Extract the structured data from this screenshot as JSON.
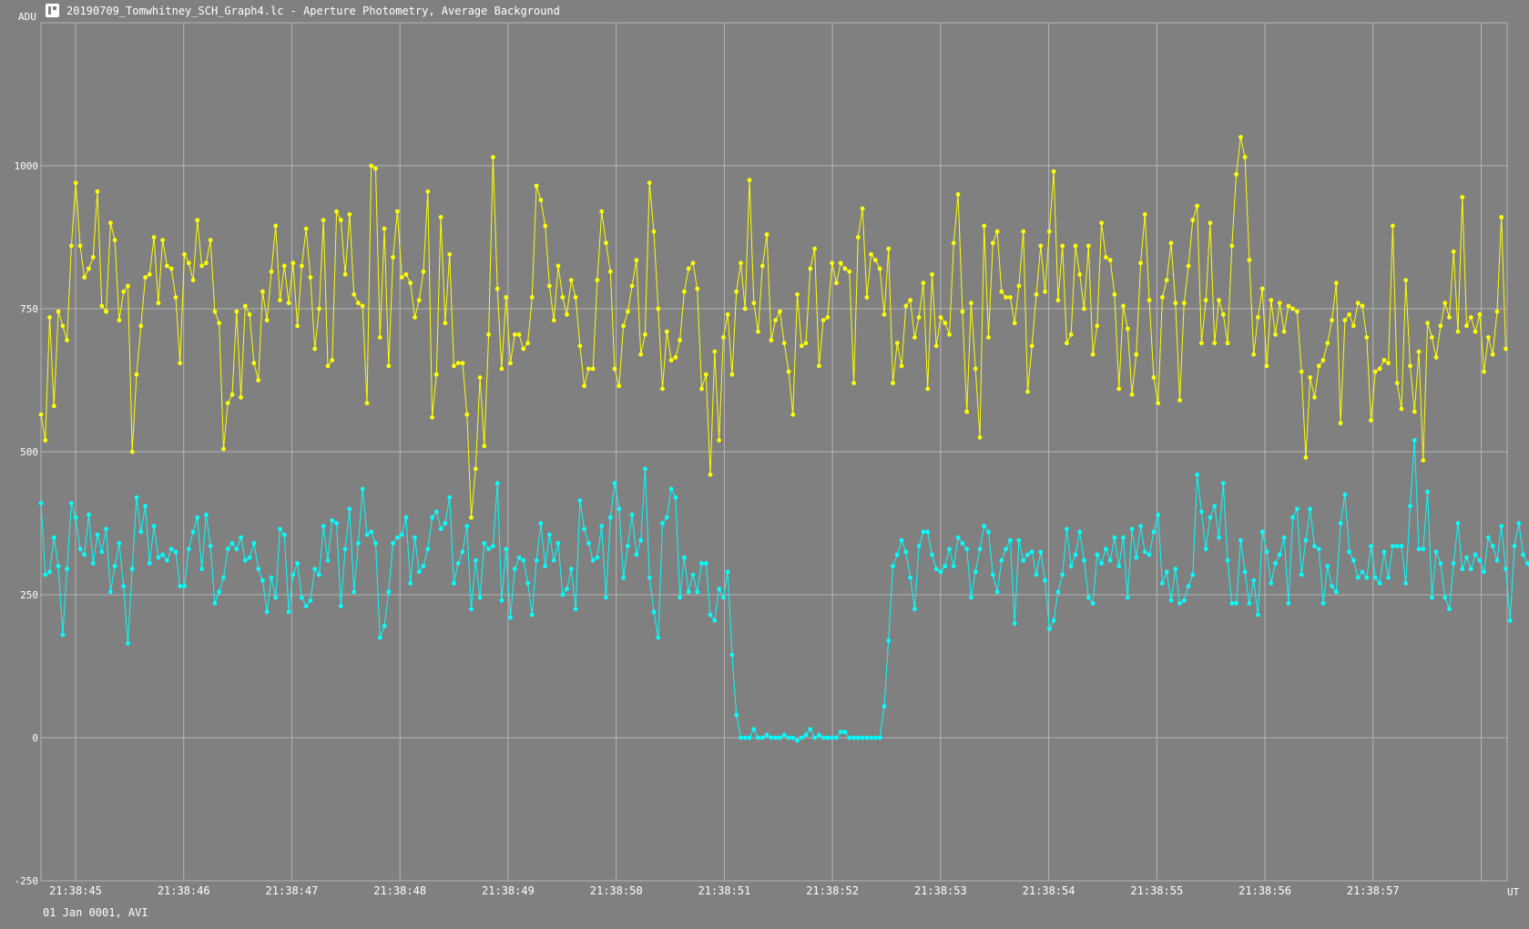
{
  "window": {
    "title": "20190709_Tomwhitney_SCH_Graph4.lc - Aperture Photometry, Average Background",
    "icon": "lightcurve-app-icon"
  },
  "footer": {
    "date_label": "01 Jan 0001, AVI"
  },
  "colors": {
    "background": "#808080",
    "grid": "#b4b4b4",
    "series_yellow": "#ffff00",
    "series_cyan": "#00ffff"
  },
  "chart_data": {
    "type": "line",
    "title": "",
    "ylabel": "ADU",
    "xlabel": "UT",
    "ylim": [
      -250,
      1250
    ],
    "yticks": [
      -250,
      0,
      250,
      500,
      750,
      1000
    ],
    "xlim": [
      44.68,
      58.24
    ],
    "xticks": [
      45,
      46,
      47,
      48,
      49,
      50,
      51,
      52,
      53,
      54,
      55,
      56,
      57,
      58
    ],
    "xtick_labels": [
      "21:38:45",
      "21:38:46",
      "21:38:47",
      "21:38:48",
      "21:38:49",
      "21:38:50",
      "21:38:51",
      "21:38:52",
      "21:38:53",
      "21:38:54",
      "21:38:55",
      "21:38:56",
      "21:38:57",
      ""
    ],
    "grid": true,
    "legend": "none",
    "x_start": 44.68,
    "x_step": 0.0402,
    "series": [
      {
        "color": "#ffff00",
        "values": [
          565,
          520,
          735,
          580,
          745,
          720,
          695,
          860,
          970,
          860,
          805,
          820,
          840,
          955,
          755,
          745,
          900,
          870,
          730,
          780,
          790,
          500,
          635,
          720,
          805,
          810,
          875,
          760,
          870,
          825,
          820,
          770,
          655,
          845,
          830,
          800,
          905,
          825,
          830,
          870,
          745,
          725,
          505,
          585,
          600,
          745,
          595,
          755,
          740,
          655,
          625,
          780,
          730,
          815,
          895,
          765,
          825,
          760,
          830,
          720,
          825,
          890,
          805,
          680,
          750,
          905,
          650,
          660,
          920,
          905,
          810,
          915,
          775,
          760,
          755,
          585,
          1000,
          995,
          700,
          890,
          650,
          840,
          920,
          805,
          810,
          795,
          735,
          765,
          815,
          955,
          560,
          635,
          910,
          725,
          845,
          650,
          655,
          655,
          565,
          385,
          470,
          630,
          510,
          705,
          1015,
          785,
          645,
          770,
          655,
          705,
          705,
          680,
          690,
          770,
          965,
          940,
          895,
          790,
          730,
          825,
          770,
          740,
          800,
          770,
          685,
          615,
          645,
          645,
          800,
          920,
          865,
          815,
          645,
          615,
          720,
          745,
          790,
          835,
          670,
          705,
          970,
          885,
          750,
          610,
          710,
          660,
          665,
          695,
          780,
          820,
          830,
          785,
          610,
          635,
          460,
          675,
          520,
          700,
          740,
          635,
          780,
          830,
          750,
          975,
          760,
          710,
          825,
          880,
          695,
          730,
          745,
          690,
          640,
          565,
          775,
          685,
          690,
          820,
          855,
          650,
          730,
          735,
          830,
          795,
          830,
          820,
          815,
          620,
          875,
          925,
          770,
          845,
          835,
          820,
          740,
          855,
          620,
          690,
          650,
          755,
          765,
          700,
          735,
          795,
          610,
          810,
          685,
          735,
          725,
          705,
          865,
          950,
          745,
          570,
          760,
          645,
          525,
          895,
          700,
          865,
          885,
          780,
          770,
          770,
          725,
          790,
          885,
          605,
          685,
          775,
          860,
          780,
          885,
          990,
          765,
          860,
          690,
          705,
          860,
          810,
          750,
          860,
          670,
          720,
          900,
          840,
          835,
          775,
          610,
          755,
          715,
          600,
          670,
          830,
          915,
          765,
          630,
          585,
          770,
          800,
          865,
          760,
          590,
          760,
          825,
          905,
          930,
          690,
          765,
          900,
          690,
          765,
          740,
          690,
          860,
          985,
          1050,
          1015,
          835,
          670,
          735,
          785,
          650,
          765,
          705,
          760,
          710,
          755,
          750,
          745,
          640,
          490,
          630,
          595,
          650,
          660,
          690,
          730,
          795,
          550,
          730,
          740,
          720,
          760,
          755,
          700,
          555,
          640,
          645,
          660,
          655,
          895,
          620,
          575,
          800,
          650,
          570,
          675,
          485,
          725,
          700,
          665,
          720,
          760,
          735,
          850,
          710,
          945,
          720,
          735,
          710,
          740,
          640,
          700,
          670,
          745,
          910,
          680
        ]
      },
      {
        "color": "#00ffff",
        "values": [
          410,
          285,
          290,
          350,
          300,
          180,
          295,
          410,
          385,
          330,
          320,
          390,
          305,
          355,
          325,
          365,
          255,
          300,
          340,
          265,
          165,
          295,
          420,
          360,
          405,
          305,
          370,
          315,
          320,
          310,
          330,
          325,
          265,
          265,
          330,
          360,
          385,
          295,
          390,
          335,
          235,
          255,
          280,
          330,
          340,
          330,
          350,
          310,
          315,
          340,
          295,
          275,
          220,
          280,
          245,
          365,
          355,
          220,
          285,
          305,
          245,
          230,
          240,
          295,
          285,
          370,
          310,
          380,
          375,
          230,
          330,
          400,
          255,
          340,
          435,
          355,
          360,
          340,
          175,
          195,
          255,
          340,
          350,
          355,
          385,
          270,
          350,
          290,
          300,
          330,
          385,
          395,
          365,
          375,
          420,
          270,
          305,
          325,
          370,
          225,
          310,
          245,
          340,
          330,
          335,
          445,
          240,
          330,
          210,
          295,
          315,
          310,
          270,
          215,
          310,
          375,
          300,
          355,
          310,
          340,
          250,
          260,
          295,
          225,
          415,
          365,
          340,
          310,
          315,
          370,
          245,
          385,
          445,
          400,
          280,
          335,
          390,
          320,
          345,
          470,
          280,
          220,
          175,
          375,
          385,
          435,
          420,
          245,
          315,
          255,
          285,
          255,
          305,
          305,
          215,
          205,
          260,
          245,
          290,
          145,
          40,
          0,
          0,
          0,
          15,
          0,
          0,
          5,
          0,
          0,
          0,
          5,
          0,
          0,
          -5,
          0,
          5,
          15,
          0,
          5,
          0,
          0,
          0,
          0,
          10,
          10,
          0,
          0,
          0,
          0,
          0,
          0,
          0,
          0,
          55,
          170,
          300,
          320,
          345,
          325,
          280,
          225,
          335,
          360,
          360,
          320,
          295,
          290,
          300,
          330,
          300,
          350,
          340,
          330,
          245,
          290,
          330,
          370,
          360,
          285,
          255,
          310,
          330,
          345,
          200,
          345,
          310,
          320,
          325,
          285,
          325,
          275,
          190,
          205,
          255,
          285,
          365,
          300,
          320,
          360,
          310,
          245,
          235,
          320,
          305,
          330,
          310,
          350,
          300,
          350,
          245,
          365,
          315,
          370,
          325,
          320,
          360,
          390,
          270,
          290,
          240,
          295,
          235,
          240,
          265,
          285,
          460,
          395,
          330,
          385,
          405,
          350,
          445,
          310,
          235,
          235,
          345,
          290,
          235,
          275,
          215,
          360,
          325,
          270,
          305,
          320,
          350,
          235,
          385,
          400,
          285,
          345,
          400,
          335,
          330,
          235,
          300,
          265,
          255,
          375,
          425,
          325,
          310,
          280,
          290,
          280,
          335,
          280,
          270,
          325,
          280,
          335,
          335,
          335,
          270,
          405,
          520,
          330,
          330,
          430,
          245,
          325,
          305,
          245,
          225,
          305,
          375,
          295,
          315,
          295,
          320,
          310,
          290,
          350,
          335,
          310,
          370,
          295,
          205,
          335,
          375,
          320,
          305,
          285,
          255,
          300
        ]
      }
    ]
  }
}
